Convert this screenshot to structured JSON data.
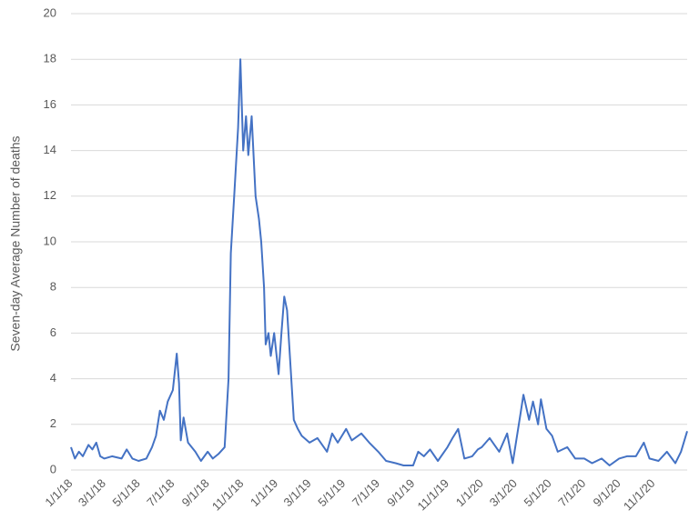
{
  "chart_data": {
    "type": "line",
    "y_label": "Seven-day Average Number of deaths",
    "x": [
      "1/1/18",
      "1/8/18",
      "1/15/18",
      "1/22/18",
      "2/1/18",
      "2/8/18",
      "2/15/18",
      "2/22/18",
      "3/1/18",
      "3/15/18",
      "4/1/18",
      "4/10/18",
      "4/20/18",
      "5/1/18",
      "5/15/18",
      "5/25/18",
      "6/1/18",
      "6/8/18",
      "6/15/18",
      "6/22/18",
      "7/1/18",
      "7/8/18",
      "7/12/18",
      "7/15/18",
      "7/20/18",
      "7/28/18",
      "8/10/18",
      "8/20/18",
      "9/1/18",
      "9/10/18",
      "9/20/18",
      "10/1/18",
      "10/8/18",
      "10/12/18",
      "10/18/18",
      "10/25/18",
      "10/29/18",
      "11/3/18",
      "11/8/18",
      "11/12/18",
      "11/18/18",
      "11/25/18",
      "12/1/18",
      "12/5/18",
      "12/10/18",
      "12/13/18",
      "12/18/18",
      "12/22/18",
      "12/28/18",
      "1/5/19",
      "1/10/19",
      "1/15/19",
      "1/20/19",
      "1/25/19",
      "2/1/19",
      "2/8/19",
      "2/15/19",
      "3/1/19",
      "3/15/19",
      "4/1/19",
      "4/10/19",
      "4/20/19",
      "5/5/19",
      "5/15/19",
      "6/1/19",
      "6/15/19",
      "7/1/19",
      "7/15/19",
      "8/1/19",
      "8/15/19",
      "9/1/19",
      "9/10/19",
      "9/20/19",
      "10/1/19",
      "10/15/19",
      "11/1/19",
      "11/10/19",
      "11/20/19",
      "12/1/19",
      "12/15/19",
      "12/25/19",
      "1/1/20",
      "1/15/20",
      "2/1/20",
      "2/15/20",
      "2/25/20",
      "3/10/20",
      "3/15/20",
      "3/25/20",
      "4/1/20",
      "4/10/20",
      "4/15/20",
      "4/25/20",
      "5/5/20",
      "5/15/20",
      "6/1/20",
      "6/15/20",
      "7/1/20",
      "7/15/20",
      "8/1/20",
      "8/15/20",
      "9/1/20",
      "9/15/20",
      "10/1/20",
      "10/15/20",
      "10/25/20",
      "11/10/20",
      "11/25/20",
      "12/10/20",
      "12/20/20",
      "12/31/20"
    ],
    "series": [
      {
        "color": "#4472c4",
        "values": [
          1.0,
          0.5,
          0.8,
          0.6,
          1.1,
          0.9,
          1.2,
          0.6,
          0.5,
          0.6,
          0.5,
          0.9,
          0.5,
          0.4,
          0.5,
          1.0,
          1.5,
          2.6,
          2.2,
          3.0,
          3.5,
          5.1,
          3.8,
          1.3,
          2.3,
          1.2,
          0.8,
          0.4,
          0.8,
          0.5,
          0.7,
          1.0,
          4.0,
          9.5,
          12,
          15,
          18,
          14,
          15.5,
          13.8,
          15.5,
          12,
          11,
          10,
          8,
          5.5,
          6,
          5,
          6,
          4.2,
          6,
          7.6,
          7,
          5,
          2.2,
          1.8,
          1.5,
          1.2,
          1.4,
          0.8,
          1.6,
          1.2,
          1.8,
          1.3,
          1.6,
          1.2,
          0.8,
          0.4,
          0.3,
          0.2,
          0.2,
          0.8,
          0.6,
          0.9,
          0.4,
          1.0,
          1.4,
          1.8,
          0.5,
          0.6,
          0.9,
          1.0,
          1.4,
          0.8,
          1.6,
          0.3,
          2.5,
          3.3,
          2.2,
          3.0,
          2.0,
          3.1,
          1.8,
          1.5,
          0.8,
          1.0,
          0.5,
          0.5,
          0.3,
          0.5,
          0.2,
          0.5,
          0.6,
          0.6,
          1.2,
          0.5,
          0.4,
          0.8,
          0.3,
          0.8,
          1.7
        ]
      }
    ],
    "xlim": [
      "1/1/18",
      "12/31/20"
    ],
    "xticks": [
      "1/1/18",
      "3/1/18",
      "5/1/18",
      "7/1/18",
      "9/1/18",
      "11/1/18",
      "1/1/19",
      "3/1/19",
      "5/1/19",
      "7/1/19",
      "9/1/19",
      "11/1/19",
      "1/1/20",
      "3/1/20",
      "5/1/20",
      "7/1/20",
      "9/1/20",
      "11/1/20"
    ],
    "ylim": [
      0,
      20
    ],
    "yticks": [
      0,
      2,
      4,
      6,
      8,
      10,
      12,
      14,
      16,
      18,
      20
    ],
    "grid": true
  }
}
